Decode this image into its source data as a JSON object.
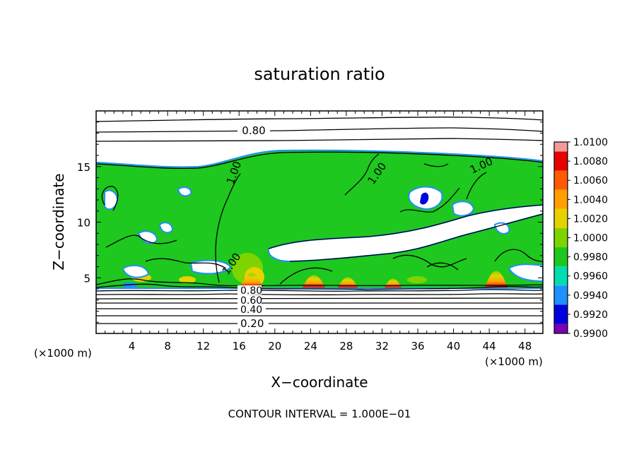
{
  "chart_data": {
    "type": "heatmap",
    "title": "saturation ratio",
    "xlabel": "X−coordinate",
    "ylabel": "Z−coordinate",
    "x_unit_left": "(×1000 m)",
    "x_unit_right": "(×1000 m)",
    "xlim": [
      0,
      50
    ],
    "ylim": [
      0,
      20
    ],
    "x_ticks": [
      4,
      8,
      12,
      16,
      20,
      24,
      28,
      32,
      36,
      40,
      44,
      48
    ],
    "x_tick_labels": [
      "4",
      "8",
      "12",
      "16",
      "20",
      "24",
      "28",
      "32",
      "36",
      "40",
      "44",
      "48"
    ],
    "y_ticks": [
      5,
      10,
      15
    ],
    "y_tick_labels": [
      "5",
      "10",
      "15"
    ],
    "contour_interval_text": "CONTOUR INTERVAL =  1.000E−01",
    "colorbar": {
      "range": [
        0.99,
        1.01
      ],
      "levels": [
        "1.0100",
        "1.0080",
        "1.0060",
        "1.0040",
        "1.0020",
        "1.0000",
        "0.9980",
        "0.9960",
        "0.9940",
        "0.9920",
        "0.9900"
      ],
      "colors": [
        "#f29a9a",
        "#e60000",
        "#ff5a00",
        "#ffa000",
        "#e6d200",
        "#7ed400",
        "#1ec81e",
        "#00ddb0",
        "#1e90ff",
        "#0000dc",
        "#7a00b4"
      ]
    },
    "contour_labels": [
      {
        "text": "0.80",
        "x": 17.5,
        "z": 18.5
      },
      {
        "text": "1.00",
        "x": 16.0,
        "z": 14.5
      },
      {
        "text": "1.00",
        "x": 21.0,
        "z": 12.5
      },
      {
        "text": "1.00",
        "x": 43.5,
        "z": 15.0
      },
      {
        "text": "1.00",
        "x": 14.0,
        "z": 6.3
      },
      {
        "text": "0.80",
        "x": 17.0,
        "z": 3.9
      },
      {
        "text": "0.60",
        "x": 17.0,
        "z": 3.2
      },
      {
        "text": "0.40",
        "x": 17.0,
        "z": 2.4
      },
      {
        "text": "0.20",
        "x": 17.0,
        "z": 0.9
      }
    ],
    "lower_contour_levels": [
      0.1,
      0.2,
      0.3,
      0.4,
      0.5,
      0.6,
      0.7,
      0.8,
      0.9
    ],
    "upper_contour_levels": [
      0.9,
      0.8,
      0.7
    ],
    "notes": "Green saturated cloud layer (~1.000) between z~4 and z~15 with white sub-saturated pockets; warm peaks near x=17,24,28,33,44 at z~4"
  }
}
